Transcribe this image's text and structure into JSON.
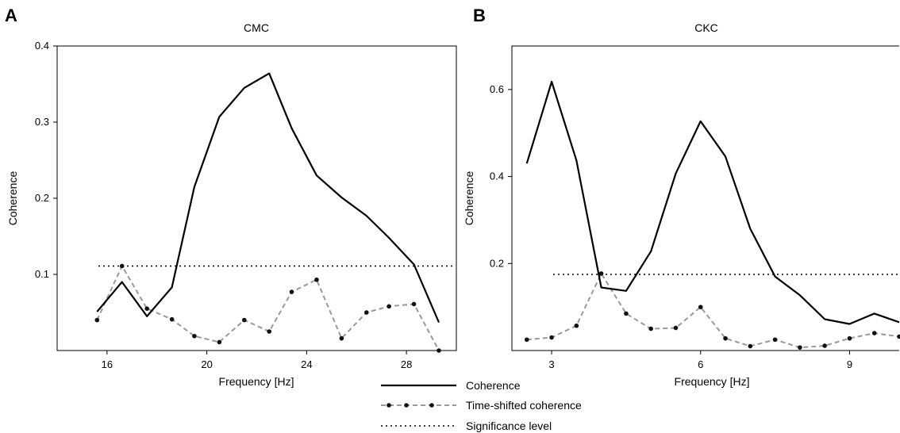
{
  "panels": [
    {
      "letter": "A",
      "title": "CMC",
      "ylabel": "Coherence",
      "xlabel": "Frequency [Hz]",
      "x_ticks": [
        "16",
        "20",
        "24",
        "28"
      ],
      "y_ticks": [
        "0.1",
        "0.2",
        "0.3",
        "0.4"
      ]
    },
    {
      "letter": "B",
      "title": "CKC",
      "ylabel": "Coherence",
      "xlabel": "Frequency [Hz]",
      "x_ticks": [
        "3",
        "6",
        "9"
      ],
      "y_ticks": [
        "0.2",
        "0.4",
        "0.6"
      ]
    }
  ],
  "legend": {
    "coherence": "Coherence",
    "time_shifted": "Time-shifted coherence",
    "significance": "Significance level"
  },
  "colors": {
    "coherence": "#000000",
    "time_shifted": "#999999",
    "markers": "#111111",
    "significance": "#000000"
  },
  "chart_data": [
    {
      "type": "line",
      "title": "CMC",
      "xlabel": "Frequency [Hz]",
      "ylabel": "Coherence",
      "xlim": [
        14,
        30
      ],
      "ylim": [
        0,
        0.4
      ],
      "x_ticks": [
        16,
        20,
        24,
        28
      ],
      "y_ticks": [
        0.1,
        0.2,
        0.3,
        0.4
      ],
      "grid": false,
      "legend_position": "bottom",
      "significance_level": 0.111,
      "series": [
        {
          "name": "Coherence",
          "style": "solid",
          "x": [
            15.6,
            16.6,
            17.6,
            18.6,
            19.5,
            20.5,
            21.5,
            22.5,
            23.4,
            24.4,
            25.4,
            26.4,
            27.3,
            28.3,
            29.3
          ],
          "y": [
            0.051,
            0.09,
            0.045,
            0.083,
            0.215,
            0.307,
            0.345,
            0.364,
            0.292,
            0.23,
            0.201,
            0.177,
            0.148,
            0.113,
            0.037
          ]
        },
        {
          "name": "Time-shifted coherence",
          "style": "dashed-markers",
          "x": [
            15.6,
            16.6,
            17.6,
            18.6,
            19.5,
            20.5,
            21.5,
            22.5,
            23.4,
            24.4,
            25.4,
            26.4,
            27.3,
            28.3,
            29.3
          ],
          "y": [
            0.04,
            0.111,
            0.055,
            0.041,
            0.019,
            0.011,
            0.04,
            0.025,
            0.077,
            0.093,
            0.016,
            0.05,
            0.058,
            0.061,
            0.0
          ]
        }
      ]
    },
    {
      "type": "line",
      "title": "CKC",
      "xlabel": "Frequency [Hz]",
      "ylabel": "Coherence",
      "xlim": [
        2.2,
        10
      ],
      "ylim": [
        0,
        0.7
      ],
      "x_ticks": [
        3,
        6,
        9
      ],
      "y_ticks": [
        0.2,
        0.4,
        0.6
      ],
      "grid": false,
      "legend_position": "bottom",
      "significance_level": 0.175,
      "series": [
        {
          "name": "Coherence",
          "style": "solid",
          "x": [
            2.5,
            3.0,
            3.5,
            4.0,
            4.5,
            5.0,
            5.5,
            6.0,
            6.5,
            7.0,
            7.5,
            8.0,
            8.5,
            9.0,
            9.5,
            10.0
          ],
          "y": [
            0.43,
            0.618,
            0.437,
            0.145,
            0.137,
            0.228,
            0.407,
            0.527,
            0.446,
            0.28,
            0.17,
            0.127,
            0.072,
            0.061,
            0.085,
            0.065
          ]
        },
        {
          "name": "Time-shifted coherence",
          "style": "dashed-markers",
          "x": [
            2.5,
            3.0,
            3.5,
            4.0,
            4.5,
            5.0,
            5.5,
            6.0,
            6.5,
            7.0,
            7.5,
            8.0,
            8.5,
            9.0,
            9.5,
            10.0
          ],
          "y": [
            0.025,
            0.03,
            0.057,
            0.177,
            0.085,
            0.05,
            0.052,
            0.1,
            0.028,
            0.01,
            0.025,
            0.007,
            0.011,
            0.028,
            0.04,
            0.032
          ]
        }
      ]
    }
  ]
}
